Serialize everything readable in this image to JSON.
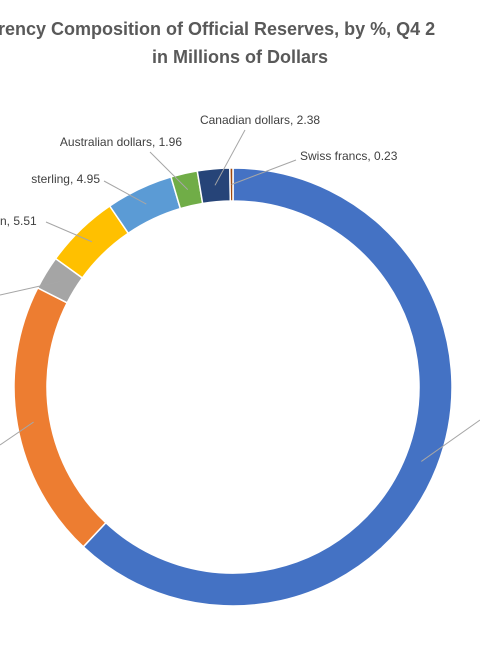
{
  "chart_data": {
    "type": "doughnut",
    "title": "rency Composition of Official Reserves, by %, Q4 2",
    "subtitle": "in Millions of Dollars",
    "categories": [
      null,
      null,
      null,
      null,
      null,
      null,
      null,
      null
    ],
    "values": [
      62,
      20.5,
      2.5,
      5.51,
      4.95,
      1.96,
      2.38,
      0.23
    ],
    "value_labels": [
      null,
      null,
      null,
      "n, 5.51",
      "sterling, 4.95",
      "Australian dollars, 1.96",
      "Canadian dollars, 2.38",
      "Swiss francs, 0.23"
    ],
    "colors": [
      "#4472c4",
      "#ed7d31",
      "#a5a5a5",
      "#ffc000",
      "#5b9bd5",
      "#70ad47",
      "#264478",
      "#9e480e"
    ]
  }
}
